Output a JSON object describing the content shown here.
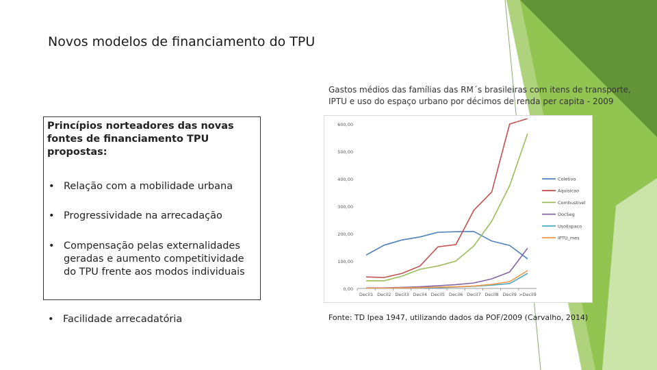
{
  "slide": {
    "title": "Novos modelos de financiamento do TPU",
    "chart_caption": "Gastos médios das famílias das RM´s brasileiras com itens de transporte, IPTU e uso do espaço urbano por décimos de renda per capita - 2009",
    "source": "Fonte: TD Ipea 1947, utilizando dados da POF/2009 (Carvalho, 2014)"
  },
  "principles": {
    "title": "Princípios norteadores das novas fontes de financiamento TPU propostas:",
    "bullet_char": "•",
    "items": [
      "Relação com a mobilidade urbana",
      "Progressividade na arrecadação",
      "Compensação pelas externalidades geradas e aumento competitividade do TPU frente aos modos individuais"
    ],
    "outside_item": "Facilidade arrecadatória"
  },
  "colors": {
    "accent_green": "#92c452",
    "dark_green": "#5e8f34",
    "Coletivo": "#4f81bd",
    "Aquisicao": "#c0504d",
    "Combustivel": "#9bbb59",
    "DocSeg": "#8064a2",
    "UsoEspaco": "#4bacc6",
    "IPTU_mes": "#f79646"
  },
  "chart_data": {
    "type": "line",
    "categories": [
      "Decil1",
      "Decil2",
      "Decil3",
      "Decil4",
      "Decil5",
      "Decil6",
      "Decil7",
      "Decil8",
      "Decil9",
      ">Decil9"
    ],
    "y_ticks": [
      "0,00",
      "100,00",
      "200,00",
      "300,00",
      "400,00",
      "500,00",
      "600,00"
    ],
    "ylim": [
      0,
      600
    ],
    "grid": false,
    "legend_position": "right",
    "series": [
      {
        "name": "Coletivo",
        "values": [
          122,
          158,
          177,
          188,
          205,
          207,
          208,
          173,
          157,
          108
        ]
      },
      {
        "name": "Aquisicao",
        "values": [
          42,
          40,
          55,
          82,
          152,
          160,
          285,
          352,
          600,
          620
        ]
      },
      {
        "name": "Combustivel",
        "values": [
          28,
          28,
          45,
          70,
          82,
          100,
          155,
          245,
          375,
          565
        ]
      },
      {
        "name": "DocSeg",
        "values": [
          2,
          2,
          4,
          6,
          10,
          14,
          20,
          35,
          60,
          147
        ]
      },
      {
        "name": "UsoEspaco",
        "values": [
          0,
          0,
          1,
          2,
          3,
          5,
          8,
          12,
          18,
          55
        ]
      },
      {
        "name": "IPTU_mes",
        "values": [
          1,
          1,
          2,
          3,
          5,
          6,
          9,
          15,
          25,
          65
        ]
      }
    ]
  }
}
